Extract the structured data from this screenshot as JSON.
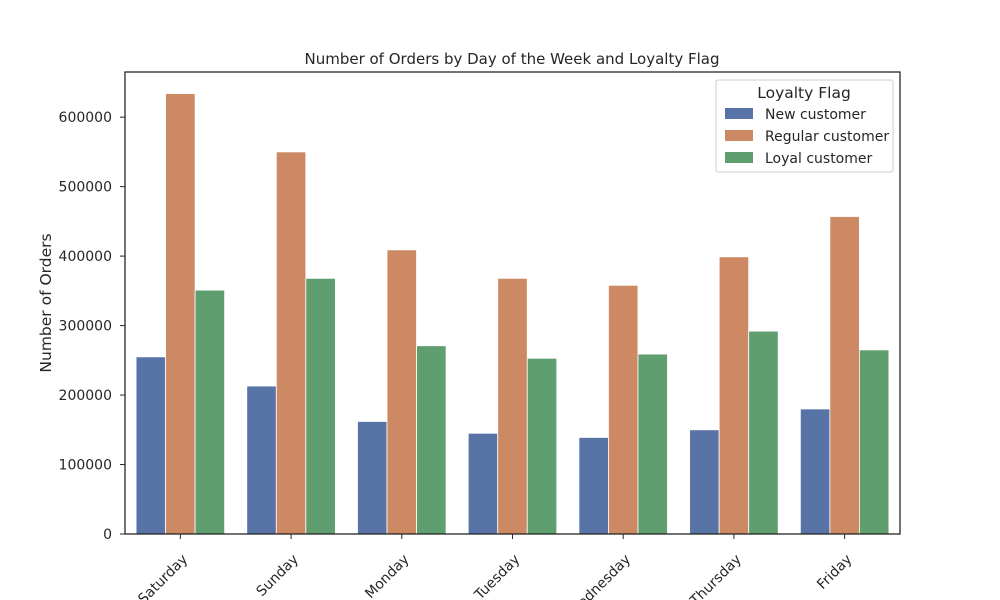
{
  "chart_data": {
    "type": "bar",
    "title": "Number of Orders by Day of the Week and Loyalty Flag",
    "xlabel": "",
    "ylabel": "Number of Orders",
    "categories": [
      "Saturday",
      "Sunday",
      "Monday",
      "Tuesday",
      "Wednesday",
      "Thursday",
      "Friday"
    ],
    "series": [
      {
        "name": "New customer",
        "color": "#5874a6",
        "values": [
          255000,
          213000,
          162000,
          145000,
          139000,
          150000,
          180000
        ]
      },
      {
        "name": "Regular customer",
        "color": "#cc8963",
        "values": [
          634000,
          550000,
          409000,
          368000,
          358000,
          399000,
          457000
        ]
      },
      {
        "name": "Loyal customer",
        "color": "#5f9e6e",
        "values": [
          351000,
          368000,
          271000,
          253000,
          259000,
          292000,
          265000
        ]
      }
    ],
    "ylim": [
      0,
      665000
    ],
    "yticks": [
      0,
      100000,
      200000,
      300000,
      400000,
      500000,
      600000
    ],
    "legend": {
      "title": "Loyalty Flag",
      "position": "top-right"
    },
    "grid": false
  }
}
